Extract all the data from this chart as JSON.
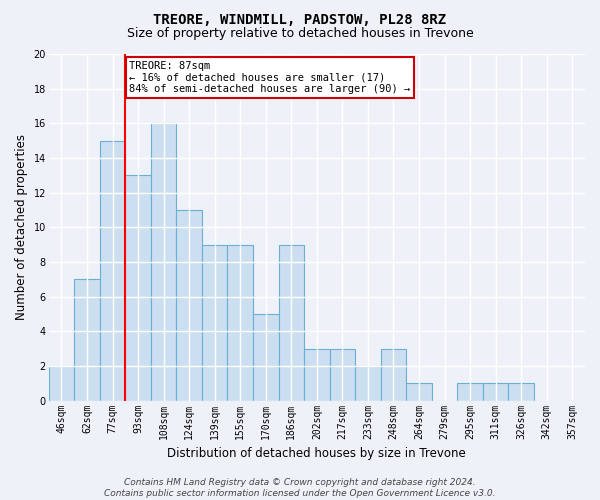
{
  "title": "TREORE, WINDMILL, PADSTOW, PL28 8RZ",
  "subtitle": "Size of property relative to detached houses in Trevone",
  "xlabel": "Distribution of detached houses by size in Trevone",
  "ylabel": "Number of detached properties",
  "categories": [
    "46sqm",
    "62sqm",
    "77sqm",
    "93sqm",
    "108sqm",
    "124sqm",
    "139sqm",
    "155sqm",
    "170sqm",
    "186sqm",
    "202sqm",
    "217sqm",
    "233sqm",
    "248sqm",
    "264sqm",
    "279sqm",
    "295sqm",
    "311sqm",
    "326sqm",
    "342sqm",
    "357sqm"
  ],
  "values": [
    2,
    7,
    15,
    13,
    16,
    11,
    9,
    9,
    5,
    9,
    3,
    3,
    2,
    3,
    1,
    0,
    1,
    1,
    1,
    0,
    0
  ],
  "bar_color": "#ccdff0",
  "bar_edge_color": "#6aaed6",
  "red_line_x": 2.5,
  "ylim": [
    0,
    20
  ],
  "yticks": [
    0,
    2,
    4,
    6,
    8,
    10,
    12,
    14,
    16,
    18,
    20
  ],
  "annotation_text": "TREORE: 87sqm\n← 16% of detached houses are smaller (17)\n84% of semi-detached houses are larger (90) →",
  "annotation_box_color": "#ffffff",
  "annotation_box_edge": "#cc0000",
  "footer_text": "Contains HM Land Registry data © Crown copyright and database right 2024.\nContains public sector information licensed under the Open Government Licence v3.0.",
  "background_color": "#eef2f8",
  "grid_color": "#ffffff",
  "title_fontsize": 10,
  "subtitle_fontsize": 9,
  "axis_label_fontsize": 8.5,
  "tick_fontsize": 7,
  "footer_fontsize": 6.5,
  "annotation_fontsize": 7.5
}
